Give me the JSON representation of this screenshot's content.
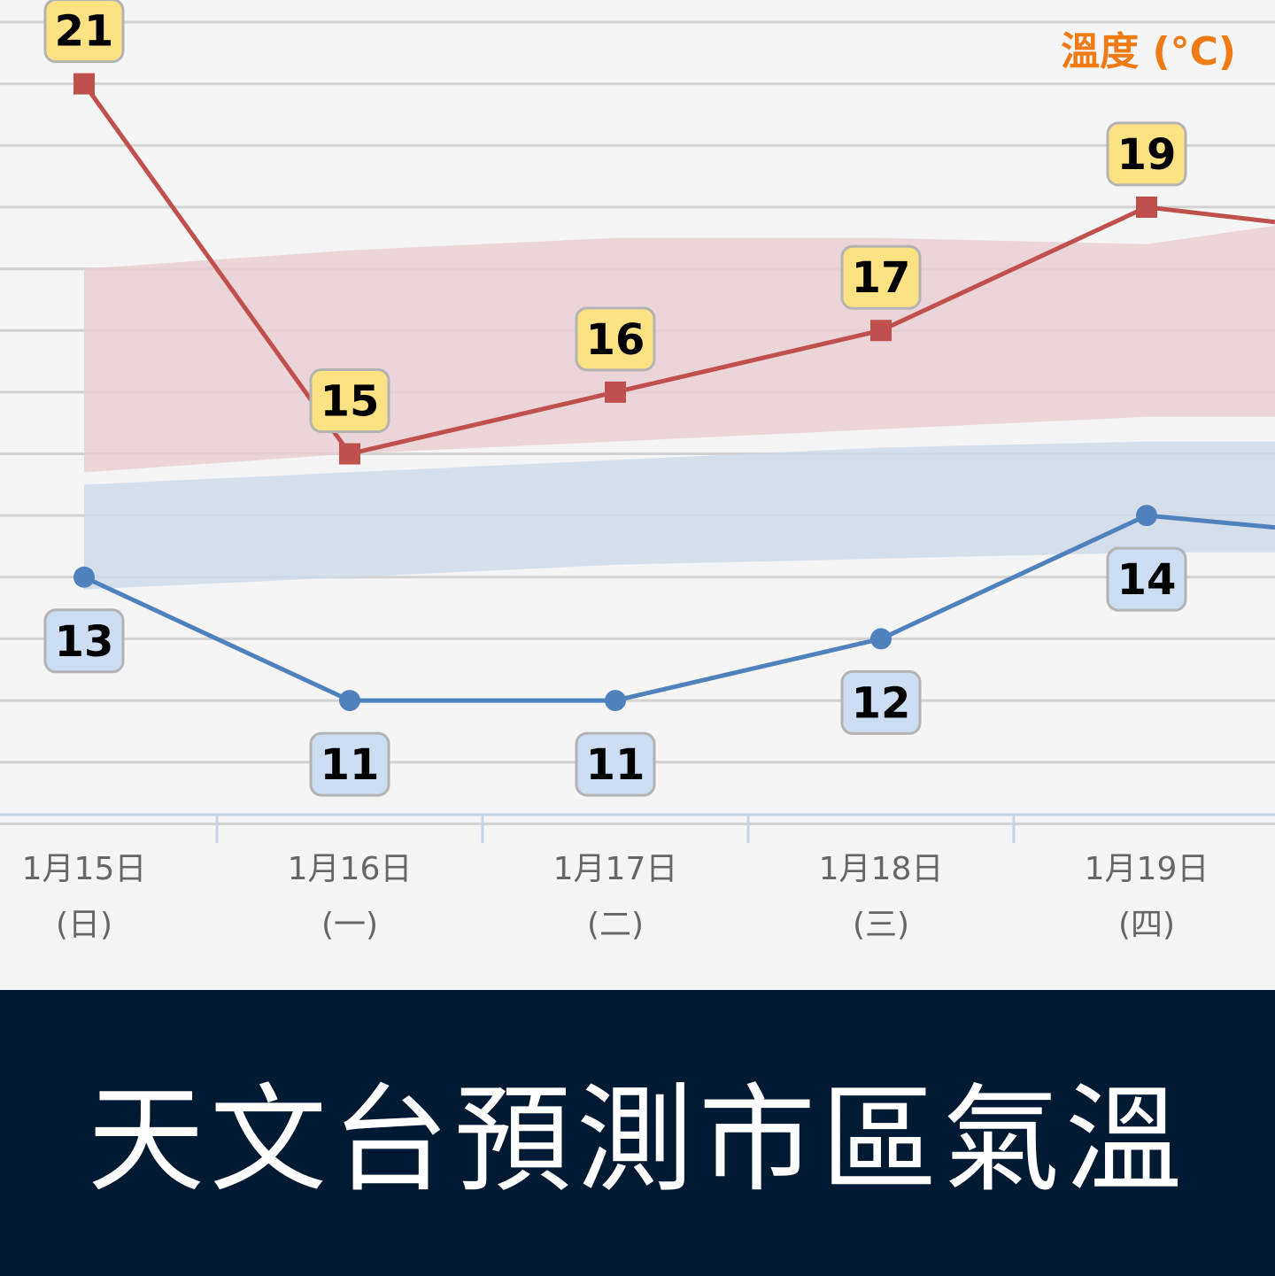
{
  "chart_data": {
    "type": "line",
    "unit_label": "溫度 (°C)",
    "categories": [
      "1月15日",
      "1月16日",
      "1月17日",
      "1月18日",
      "1月19日"
    ],
    "weekdays": [
      "(日)",
      "(一)",
      "(二)",
      "(三)",
      "(四)"
    ],
    "series": [
      {
        "key": "max",
        "values": [
          21,
          15,
          16,
          17,
          19
        ],
        "color": "#c0504d",
        "marker": "square"
      },
      {
        "key": "min",
        "values": [
          13,
          11,
          11,
          12,
          14
        ],
        "color": "#4f81bd",
        "marker": "circle"
      }
    ],
    "partial_next_values": {
      "max": 18.5,
      "min": 13.6
    },
    "normal_ranges": {
      "max_band": {
        "upper": [
          18.0,
          18.3,
          18.5,
          18.5,
          18.4,
          18.7
        ],
        "lower": [
          14.7,
          15.0,
          15.2,
          15.4,
          15.6,
          15.6
        ],
        "color": "#e9cfd2"
      },
      "min_band": {
        "upper": [
          14.5,
          14.7,
          14.9,
          15.1,
          15.2,
          15.2
        ],
        "lower": [
          12.8,
          13.0,
          13.2,
          13.3,
          13.4,
          13.4
        ],
        "color": "#cfdaea"
      }
    },
    "ylim": [
      8,
      22
    ],
    "grid": true,
    "label_colors": {
      "max_box": "#fde283",
      "min_box": "#cdddf2"
    }
  },
  "banner": {
    "title": "天文台預測市區氣溫"
  }
}
